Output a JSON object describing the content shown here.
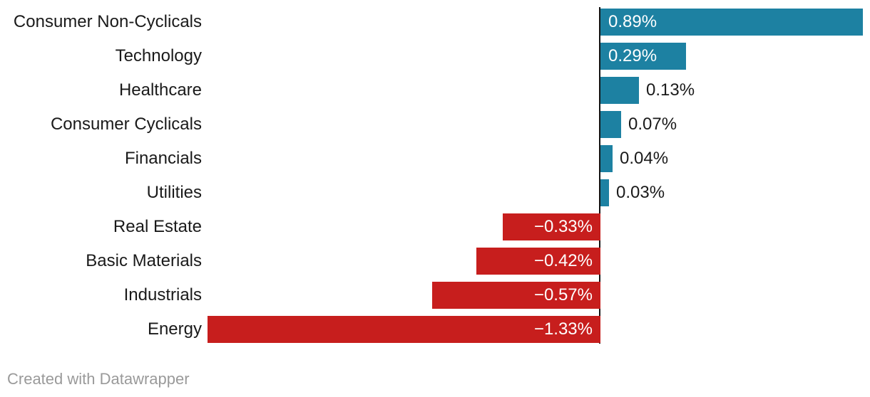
{
  "chart_data": {
    "type": "bar",
    "orientation": "horizontal",
    "categories": [
      "Consumer Non-Cyclicals",
      "Technology",
      "Healthcare",
      "Consumer Cyclicals",
      "Financials",
      "Utilities",
      "Real Estate",
      "Basic Materials",
      "Industrials",
      "Energy"
    ],
    "values": [
      0.89,
      0.29,
      0.13,
      0.07,
      0.04,
      0.03,
      -0.33,
      -0.42,
      -0.57,
      -1.33
    ],
    "value_labels": [
      "0.89%",
      "0.29%",
      "0.13%",
      "0.07%",
      "0.04%",
      "0.03%",
      "−0.33%",
      "−0.42%",
      "−0.57%",
      "−1.33%"
    ],
    "title": "",
    "xlabel": "",
    "ylabel": "",
    "xlim": [
      -1.33,
      0.91
    ],
    "baseline": 0,
    "grid": false,
    "legend": false,
    "positive_color": "#1d81a2",
    "negative_color": "#c71e1d",
    "axis_color": "#141414",
    "label_color": "#1a1a1a",
    "inside_label_color": "#ffffff"
  },
  "footer": {
    "credit": "Created with Datawrapper",
    "color": "#9a9a9a"
  }
}
